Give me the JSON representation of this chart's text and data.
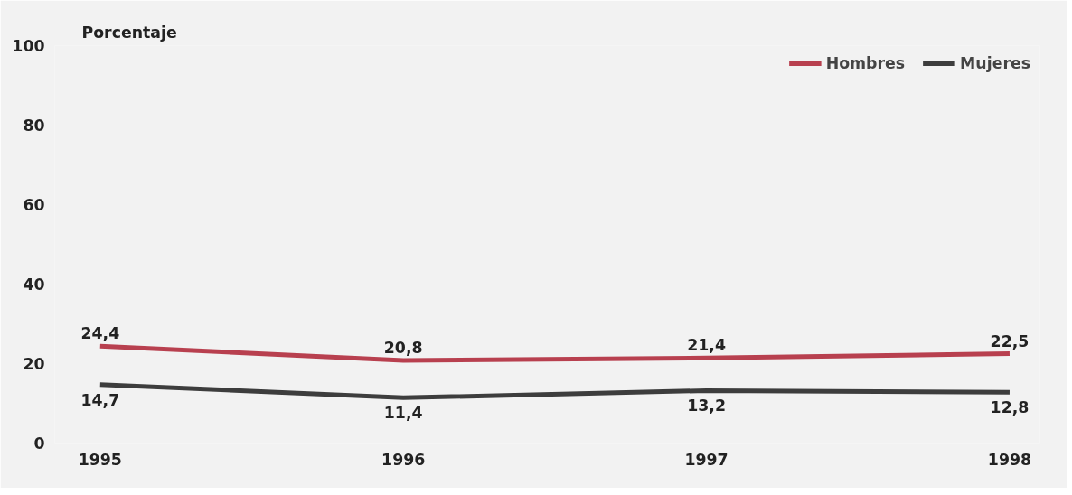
{
  "chart_data": {
    "type": "line",
    "ylabel": "Porcentaje",
    "categories": [
      "1995",
      "1996",
      "1997",
      "1998"
    ],
    "series": [
      {
        "name": "Hombres",
        "color": "#b8404f",
        "values": [
          24.4,
          20.8,
          21.4,
          22.5
        ],
        "value_labels": [
          "24,4",
          "20,8",
          "21,4",
          "22,5"
        ]
      },
      {
        "name": "Mujeres",
        "color": "#3d3d3d",
        "values": [
          14.7,
          11.4,
          13.2,
          12.8
        ],
        "value_labels": [
          "14,7",
          "11,4",
          "13,2",
          "12,8"
        ]
      }
    ],
    "ylim": [
      0,
      100
    ],
    "yticks": [
      0,
      20,
      40,
      60,
      80,
      100
    ],
    "grid": false,
    "legend": "top right",
    "marker": "none",
    "line_style": "solid"
  }
}
